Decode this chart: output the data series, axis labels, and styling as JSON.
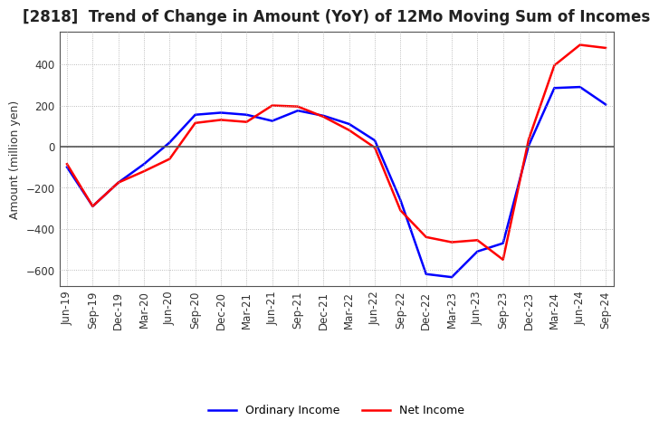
{
  "title": "[2818]  Trend of Change in Amount (YoY) of 12Mo Moving Sum of Incomes",
  "ylabel": "Amount (million yen)",
  "ylim": [
    -680,
    560
  ],
  "yticks": [
    -600,
    -400,
    -200,
    0,
    200,
    400
  ],
  "background_color": "#ffffff",
  "grid_color": "#aaaaaa",
  "x_labels": [
    "Jun-19",
    "Sep-19",
    "Dec-19",
    "Mar-20",
    "Jun-20",
    "Sep-20",
    "Dec-20",
    "Mar-21",
    "Jun-21",
    "Sep-21",
    "Dec-21",
    "Mar-22",
    "Jun-22",
    "Sep-22",
    "Dec-22",
    "Mar-23",
    "Jun-23",
    "Sep-23",
    "Dec-23",
    "Mar-24",
    "Jun-24",
    "Sep-24"
  ],
  "ordinary_income": [
    -100,
    -290,
    -175,
    -85,
    20,
    155,
    165,
    155,
    125,
    175,
    150,
    110,
    30,
    -260,
    -620,
    -635,
    -510,
    -470,
    5,
    285,
    290,
    205
  ],
  "net_income": [
    -85,
    -290,
    -175,
    -120,
    -60,
    115,
    130,
    120,
    200,
    195,
    145,
    80,
    -5,
    -310,
    -440,
    -465,
    -455,
    -550,
    35,
    395,
    495,
    480
  ],
  "ordinary_color": "#0000ff",
  "net_color": "#ff0000",
  "line_width": 1.8,
  "title_fontsize": 12,
  "tick_fontsize": 8.5,
  "ylabel_fontsize": 9
}
